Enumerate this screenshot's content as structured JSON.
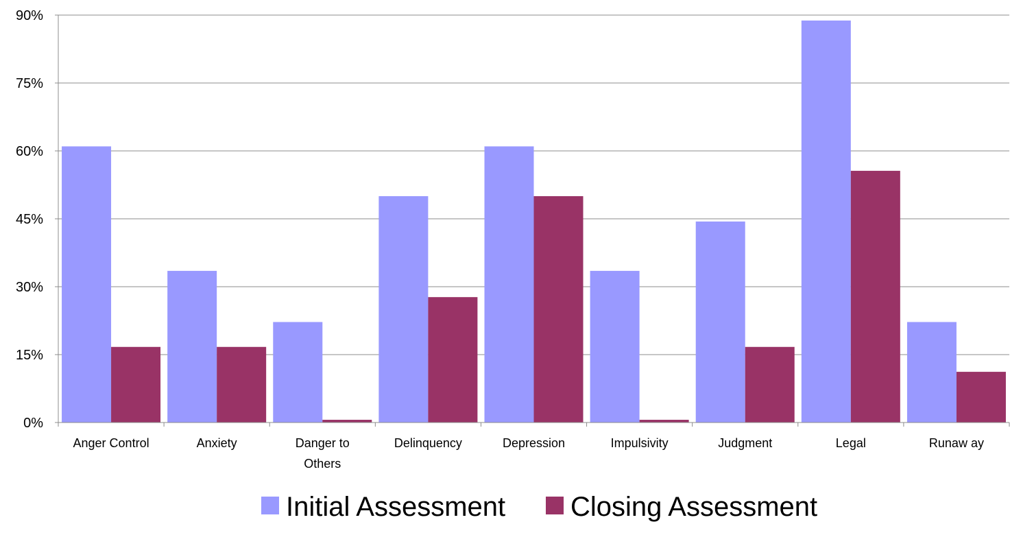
{
  "chart_data": {
    "type": "bar",
    "title": "",
    "xlabel": "",
    "ylabel": "",
    "categories": [
      [
        "Anger Control"
      ],
      [
        "Anxiety"
      ],
      [
        "Danger to",
        "Others"
      ],
      [
        "Delinquency"
      ],
      [
        "Depression"
      ],
      [
        "Impulsivity"
      ],
      [
        "Judgment"
      ],
      [
        "Legal"
      ],
      [
        "Runaw ay"
      ]
    ],
    "series": [
      {
        "name": "Initial Assessment",
        "color": "#9999FF",
        "values": [
          61,
          33.5,
          22.2,
          50,
          61,
          33.5,
          44.4,
          88.8,
          22.2
        ]
      },
      {
        "name": "Closing Assessment",
        "color": "#993366",
        "values": [
          16.7,
          16.7,
          0.6,
          27.7,
          50,
          0.6,
          16.7,
          55.6,
          11.2
        ]
      }
    ],
    "ylim": [
      0,
      90
    ],
    "yticks": [
      0,
      15,
      30,
      45,
      60,
      75,
      90
    ],
    "ytick_labels": [
      "0%",
      "15%",
      "30%",
      "45%",
      "60%",
      "75%",
      "90%"
    ],
    "grid": true,
    "legend_position": "bottom-center"
  }
}
